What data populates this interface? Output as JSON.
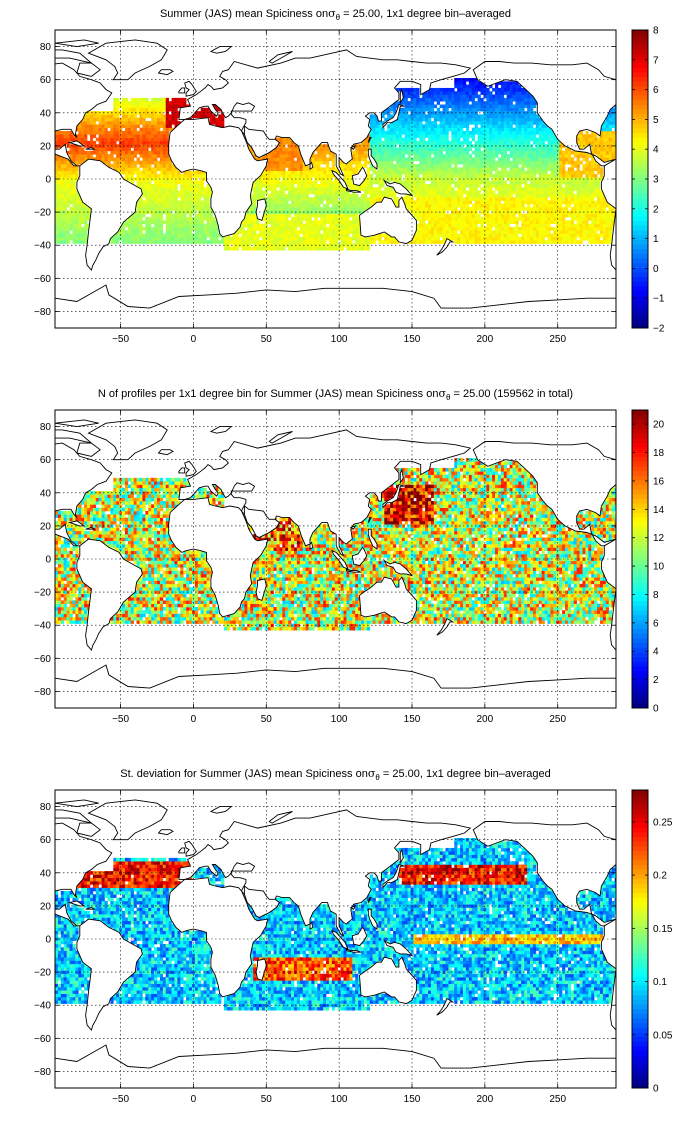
{
  "figure": {
    "background": "#ffffff",
    "colormap": "jet",
    "land_color": "#ffffff",
    "coastline_color": "#000000"
  },
  "chart_data": [
    {
      "type": "heatmap",
      "title_prefix": "Summer (JAS) mean Spiciness on",
      "title_sigma": "σ",
      "title_sub": "θ",
      "title_suffix": " = 25.00, 1x1 degree bin–averaged",
      "xlim": [
        -95,
        290
      ],
      "ylim": [
        -90,
        90
      ],
      "xticks": [
        -50,
        0,
        50,
        100,
        150,
        200,
        250
      ],
      "yticks": [
        -80,
        -60,
        -40,
        -20,
        0,
        20,
        40,
        60,
        80
      ],
      "grid": true,
      "colorbar": {
        "min": -2,
        "max": 8,
        "ticks": [
          -2,
          -1,
          0,
          1,
          2,
          3,
          4,
          5,
          6,
          7,
          8
        ]
      },
      "field": "spiciness_mean"
    },
    {
      "type": "heatmap",
      "title_prefix": "N of profiles per 1x1 degree bin for Summer (JAS) mean Spiciness on",
      "title_sigma": "σ",
      "title_sub": "θ",
      "title_suffix": " = 25.00 (159562 in total)",
      "xlim": [
        -95,
        290
      ],
      "ylim": [
        -90,
        90
      ],
      "xticks": [
        -50,
        0,
        50,
        100,
        150,
        200,
        250
      ],
      "yticks": [
        -80,
        -60,
        -40,
        -20,
        0,
        20,
        40,
        60,
        80
      ],
      "grid": true,
      "colorbar": {
        "min": 0,
        "max": 21,
        "ticks": [
          0,
          2,
          4,
          6,
          8,
          10,
          12,
          14,
          16,
          18,
          20
        ]
      },
      "field": "profile_count"
    },
    {
      "type": "heatmap",
      "title_prefix": "St. deviation for Summer (JAS) mean Spiciness on",
      "title_sigma": "σ",
      "title_sub": "θ",
      "title_suffix": " = 25.00, 1x1 degree bin–averaged",
      "xlim": [
        -95,
        290
      ],
      "ylim": [
        -90,
        90
      ],
      "xticks": [
        -50,
        0,
        50,
        100,
        150,
        200,
        250
      ],
      "yticks": [
        -80,
        -60,
        -40,
        -20,
        0,
        20,
        40,
        60,
        80
      ],
      "grid": true,
      "colorbar": {
        "min": 0,
        "max": 0.28,
        "ticks": [
          0,
          0.05,
          0.1,
          0.15,
          0.2,
          0.25
        ]
      },
      "field": "spiciness_std"
    }
  ]
}
